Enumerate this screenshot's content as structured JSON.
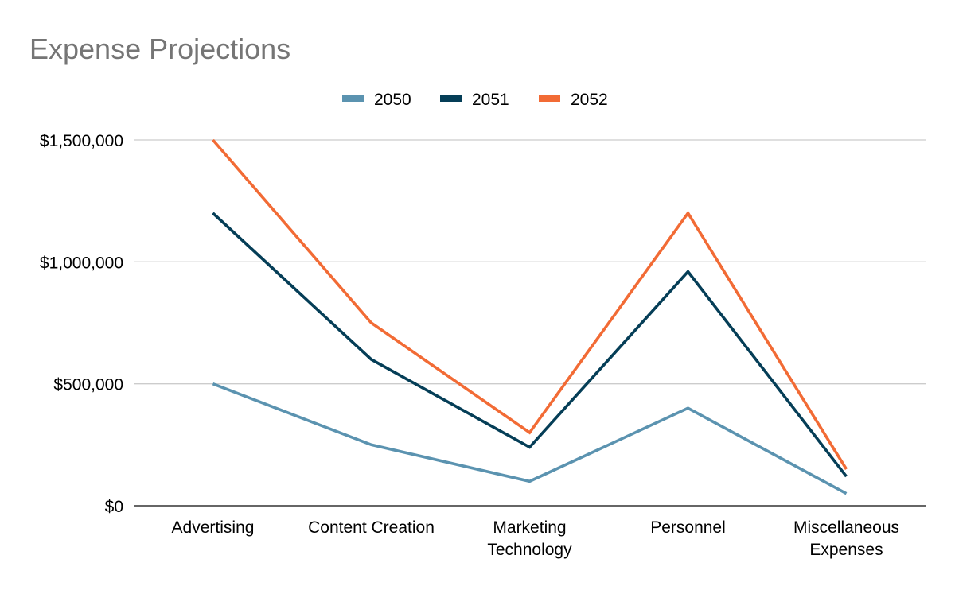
{
  "chart_data": {
    "type": "line",
    "title": "Expense Projections",
    "xlabel": "",
    "ylabel": "",
    "categories": [
      [
        "Advertising"
      ],
      [
        "Content Creation"
      ],
      [
        "Marketing",
        "Technology"
      ],
      [
        "Personnel"
      ],
      [
        "Miscellaneous",
        "Expenses"
      ]
    ],
    "series": [
      {
        "name": "2050",
        "color": "#5b93b0",
        "values": [
          500000,
          250000,
          100000,
          400000,
          50000
        ]
      },
      {
        "name": "2051",
        "color": "#053e57",
        "values": [
          1200000,
          600000,
          240000,
          960000,
          120000
        ]
      },
      {
        "name": "2052",
        "color": "#f26b35",
        "values": [
          1500000,
          750000,
          300000,
          1200000,
          150000
        ]
      }
    ],
    "ylim": [
      0,
      1500000
    ],
    "yticks": [
      0,
      500000,
      1000000,
      1500000
    ],
    "ytick_labels": [
      "$0",
      "$500,000",
      "$1,000,000",
      "$1,500,000"
    ],
    "grid": true,
    "legend_position": "top-center",
    "colors": {
      "title": "#757575",
      "text": "#000000",
      "grid": "#cccccc",
      "axis": "#333333"
    }
  }
}
